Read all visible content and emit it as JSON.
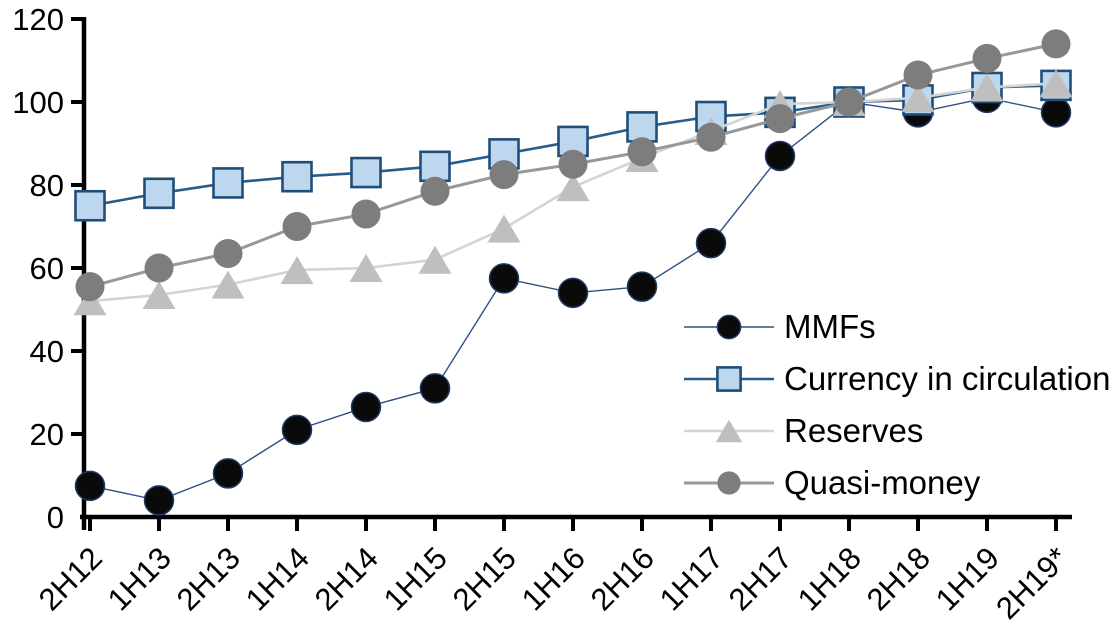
{
  "chart_data": {
    "type": "line",
    "title": "",
    "xlabel": "",
    "ylabel": "",
    "ylim": [
      0,
      120
    ],
    "ytick_step": 20,
    "yticks": [
      0,
      20,
      40,
      60,
      80,
      100,
      120
    ],
    "grid": false,
    "legend_position": "inside-right",
    "categories": [
      "2H12",
      "1H13",
      "2H13",
      "1H14",
      "2H14",
      "1H15",
      "2H15",
      "1H16",
      "2H16",
      "1H17",
      "2H17",
      "1H18",
      "2H18",
      "1H19",
      "2H19*"
    ],
    "series": [
      {
        "name": "MMFs",
        "marker": "circle",
        "marker_fill": "#0a0a0a",
        "marker_stroke": "#1f3864",
        "line_color": "#2e5083",
        "line_width": 1.4,
        "values": [
          7.5,
          4,
          10.5,
          21,
          26.5,
          31,
          57.5,
          54,
          55.5,
          66,
          87,
          100,
          97.5,
          101,
          97.5
        ]
      },
      {
        "name": "Currency in circulation",
        "marker": "square",
        "marker_fill": "#bdd7ee",
        "marker_stroke": "#1f4e79",
        "line_color": "#275d8d",
        "line_width": 2.6,
        "values": [
          75,
          78,
          80.5,
          82,
          83,
          84.5,
          87.5,
          90.5,
          94,
          96.5,
          97.5,
          100,
          100.5,
          103.5,
          104
        ]
      },
      {
        "name": "Reserves",
        "marker": "triangle",
        "marker_fill": "#bfbfbf",
        "marker_stroke": "none",
        "line_color": "#d4d4d4",
        "line_width": 2.6,
        "values": [
          52,
          53.5,
          56,
          59.5,
          60,
          62,
          69.5,
          79.5,
          86.5,
          93,
          99.5,
          100,
          101,
          103.5,
          104.5
        ]
      },
      {
        "name": "Quasi-money",
        "marker": "circle",
        "marker_fill": "#7d7d7d",
        "marker_stroke": "none",
        "line_color": "#989898",
        "line_width": 3,
        "values": [
          55.5,
          60,
          63.5,
          70,
          73,
          78.5,
          82.5,
          85,
          88,
          91.5,
          96,
          100,
          106.5,
          110.5,
          114
        ]
      }
    ],
    "axis_color": "#000000"
  }
}
